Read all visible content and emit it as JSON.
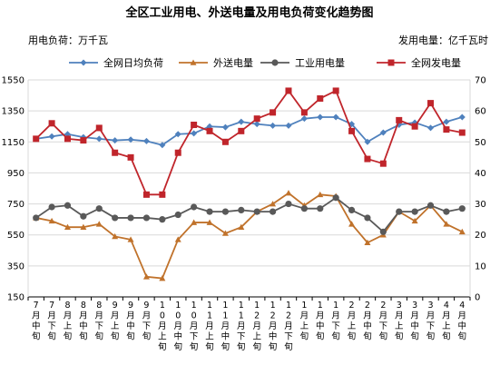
{
  "chart_data": {
    "type": "line",
    "title": "全区工业用电、外送电量及用电负荷变化趋势图",
    "left_unit": "用电负荷：万千瓦",
    "right_unit": "发用电量：亿千瓦时",
    "left_axis": {
      "min": 150,
      "max": 1550,
      "ticks": [
        150,
        350,
        550,
        750,
        950,
        1150,
        1350,
        1550
      ]
    },
    "right_axis": {
      "min": 0,
      "max": 70,
      "ticks": [
        0,
        10,
        20,
        30,
        40,
        50,
        60,
        70
      ]
    },
    "categories": [
      "7月中旬",
      "7月下旬",
      "8月上旬",
      "8月中旬",
      "8月下旬",
      "9月上旬",
      "9月中旬",
      "9月下旬",
      "10月上旬",
      "10月中旬",
      "10月下旬",
      "11月上旬",
      "11月中旬",
      "11月下旬",
      "12月上旬",
      "12月中旬",
      "12月下旬",
      "1月上旬",
      "1月中旬",
      "1月下旬",
      "2月上旬",
      "2月中旬",
      "2月下旬",
      "3月上旬",
      "3月中旬",
      "3月下旬",
      "4月上旬",
      "4月中旬"
    ],
    "series": [
      {
        "name": "全网日均负荷",
        "axis": "left",
        "color": "#4f81bd",
        "marker": "diamond",
        "values": [
          1170,
          1185,
          1200,
          1180,
          1170,
          1160,
          1165,
          1155,
          1130,
          1200,
          1205,
          1250,
          1245,
          1280,
          1265,
          1255,
          1255,
          1300,
          1310,
          1310,
          1265,
          1150,
          1210,
          1260,
          1275,
          1240,
          1280,
          1310
        ]
      },
      {
        "name": "外送电量",
        "axis": "right",
        "color": "#c0722b",
        "marker": "triangle",
        "values": [
          25.5,
          24.5,
          22.5,
          22.5,
          23.5,
          19.5,
          18.5,
          6.5,
          6.0,
          18.5,
          24.0,
          24.0,
          20.5,
          22.5,
          27.5,
          30.0,
          33.5,
          29.5,
          33.0,
          32.5,
          23.5,
          17.5,
          20.0,
          27.5,
          24.5,
          29.5,
          23.5,
          21.0
        ]
      },
      {
        "name": "工业用电量",
        "axis": "right",
        "color": "#595959",
        "marker": "circle",
        "values": [
          25.5,
          29.0,
          29.5,
          26.0,
          28.5,
          25.5,
          25.5,
          25.5,
          25.0,
          26.5,
          29.0,
          27.5,
          27.5,
          28.0,
          27.5,
          27.5,
          30.0,
          28.5,
          28.5,
          32.0,
          28.0,
          25.5,
          21.0,
          27.5,
          27.5,
          29.5,
          27.5,
          28.5
        ]
      },
      {
        "name": "全网发电量",
        "axis": "right",
        "color": "#c0252b",
        "marker": "square",
        "values": [
          51.0,
          56.0,
          51.0,
          50.5,
          54.5,
          46.5,
          45.0,
          33.0,
          33.0,
          46.5,
          55.5,
          53.5,
          50.0,
          53.5,
          57.5,
          59.5,
          66.5,
          59.5,
          64.0,
          66.5,
          53.5,
          44.5,
          43.0,
          57.0,
          55.0,
          62.5,
          54.0,
          53.0
        ]
      }
    ],
    "legend_position": "top",
    "grid": true
  }
}
